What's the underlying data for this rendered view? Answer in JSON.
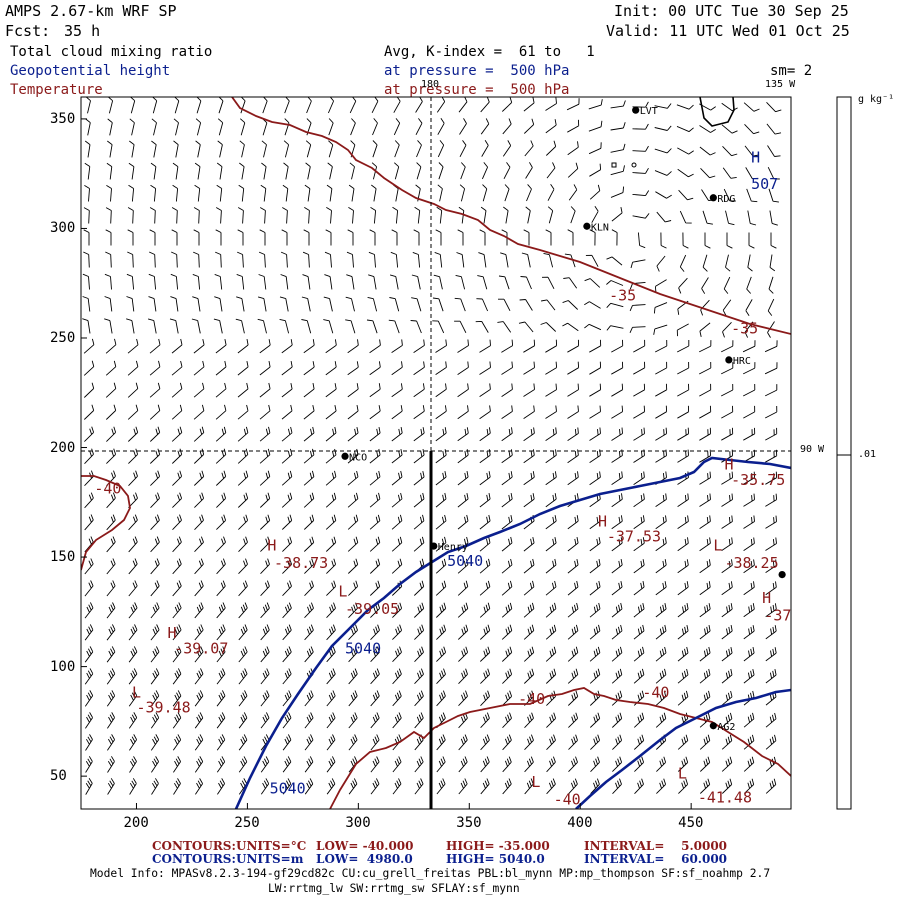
{
  "header": {
    "model": "AMPS 2.67-km WRF SP",
    "fcst_label": "Fcst:",
    "fcst_value": "35 h",
    "init": "Init: 00 UTC Tue 30 Sep 25",
    "valid": "Valid: 11 UTC Wed 01 Oct 25",
    "field1": "Total cloud mixing ratio",
    "field2": "Geopotential height",
    "field3": "Temperature",
    "avg": "Avg, K-index =  61 to   1",
    "pressure1": "at pressure =  500 hPa",
    "pressure2": "at pressure =  500 hPa",
    "sm": "sm= 2"
  },
  "colors": {
    "height": "#0b1f8e",
    "temperature": "#8b1a1a",
    "text": "#000000"
  },
  "axes": {
    "x_ticks": [
      200,
      250,
      300,
      350,
      400,
      450
    ],
    "y_ticks": [
      50,
      100,
      150,
      200,
      250,
      300,
      350
    ],
    "x_range": [
      175,
      495
    ],
    "y_range": [
      35,
      360
    ]
  },
  "longitudes": {
    "top": "180",
    "top_right": "135 W",
    "right": "90 W"
  },
  "colorbar": {
    "unit": "g kg⁻¹",
    "tick": ".01"
  },
  "stations": [
    {
      "name": "LVT",
      "x": 425,
      "y": 354
    },
    {
      "name": "RDG",
      "x": 460,
      "y": 314
    },
    {
      "name": "KLN",
      "x": 403,
      "y": 301
    },
    {
      "name": "HRC",
      "x": 467,
      "y": 240
    },
    {
      "name": "NCO",
      "x": 294,
      "y": 196
    },
    {
      "name": "Henry",
      "x": 334,
      "y": 155
    },
    {
      "name": "",
      "x": 491,
      "y": 142
    },
    {
      "name": "AG2",
      "x": 460,
      "y": 73
    }
  ],
  "labels": [
    {
      "text": "H",
      "kind": "height",
      "x": 477,
      "y": 330
    },
    {
      "text": "507",
      "kind": "height",
      "x": 477,
      "y": 318
    },
    {
      "text": "-35",
      "kind": "temperature",
      "x": 413,
      "y": 267
    },
    {
      "text": "-35",
      "kind": "temperature",
      "x": 468,
      "y": 252
    },
    {
      "text": "H",
      "kind": "temperature",
      "x": 465,
      "y": 190
    },
    {
      "text": "-35.75",
      "kind": "temperature",
      "x": 468,
      "y": 183
    },
    {
      "text": "-40",
      "kind": "temperature",
      "x": 181,
      "y": 179
    },
    {
      "text": "H",
      "kind": "temperature",
      "x": 408,
      "y": 164
    },
    {
      "text": "-37.53",
      "kind": "temperature",
      "x": 412,
      "y": 157
    },
    {
      "text": "5040",
      "kind": "height",
      "x": 340,
      "y": 146
    },
    {
      "text": "H",
      "kind": "temperature",
      "x": 259,
      "y": 153
    },
    {
      "text": "-38.73",
      "kind": "temperature",
      "x": 262,
      "y": 145
    },
    {
      "text": "L",
      "kind": "temperature",
      "x": 460,
      "y": 153
    },
    {
      "text": "-38.25",
      "kind": "temperature",
      "x": 465,
      "y": 145
    },
    {
      "text": "L",
      "kind": "temperature",
      "x": 291,
      "y": 132
    },
    {
      "text": "-39.05",
      "kind": "temperature",
      "x": 294,
      "y": 124
    },
    {
      "text": "H",
      "kind": "temperature",
      "x": 482,
      "y": 129
    },
    {
      "text": "-37",
      "kind": "temperature",
      "x": 483,
      "y": 121
    },
    {
      "text": "H",
      "kind": "temperature",
      "x": 214,
      "y": 113
    },
    {
      "text": "-39.07",
      "kind": "temperature",
      "x": 217,
      "y": 106
    },
    {
      "text": "5040",
      "kind": "height",
      "x": 294,
      "y": 106
    },
    {
      "text": "L",
      "kind": "temperature",
      "x": 198,
      "y": 86
    },
    {
      "text": "-39.48",
      "kind": "temperature",
      "x": 200,
      "y": 79
    },
    {
      "text": "-40",
      "kind": "temperature",
      "x": 372,
      "y": 83
    },
    {
      "text": "-40",
      "kind": "temperature",
      "x": 428,
      "y": 86
    },
    {
      "text": "5040",
      "kind": "height",
      "x": 260,
      "y": 42
    },
    {
      "text": "L",
      "kind": "temperature",
      "x": 378,
      "y": 45
    },
    {
      "text": "L",
      "kind": "temperature",
      "x": 444,
      "y": 49
    },
    {
      "text": "-41.48",
      "kind": "temperature",
      "x": 453,
      "y": 38
    },
    {
      "text": "-40",
      "kind": "temperature",
      "x": 388,
      "y": 37
    }
  ],
  "footer": {
    "line1_contours": "CONTOURS:",
    "line1_units": "UNITS=°C",
    "line1_low": "LOW= -40.000",
    "line1_high": "HIGH= -35.000",
    "line1_interval": "INTERVAL=    5.0000",
    "line2_contours": "CONTOURS:",
    "line2_units": "UNITS=m",
    "line2_low": "LOW=  4980.0",
    "line2_high": "HIGH= 5040.0",
    "line2_interval": "INTERVAL=    60.000",
    "model_info_1": "Model Info: MPASv8.2.3-194-gf29cd82c CU:cu_grell_freitas PBL:bl_mynn MP:mp_thompson SF:sf_noahmp 2.7",
    "model_info_2": "LW:rrtmg_lw SW:rrtmg_sw SFLAY:sf_mynn"
  }
}
